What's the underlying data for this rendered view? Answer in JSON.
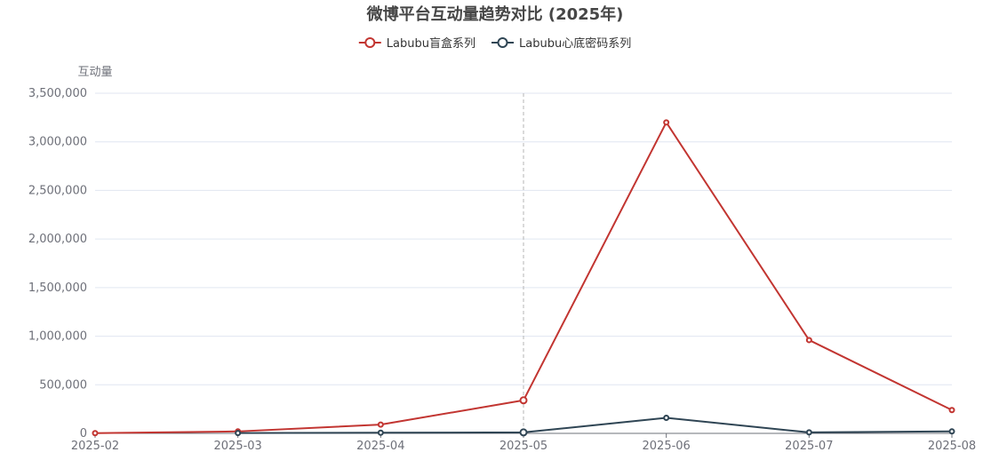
{
  "chart_data": {
    "type": "line",
    "title": "微博平台互动量趋势对比 (2025年)",
    "ylabel": "互动量",
    "xlabel": "",
    "categories": [
      "2025-02",
      "2025-03",
      "2025-04",
      "2025-05",
      "2025-06",
      "2025-07",
      "2025-08"
    ],
    "ylim": [
      0,
      3500000
    ],
    "yticks": [
      "0",
      "500,000",
      "1,000,000",
      "1,500,000",
      "2,000,000",
      "2,500,000",
      "3,000,000",
      "3,500,000"
    ],
    "grid": true,
    "legend_position": "top-center",
    "highlighted_category": "2025-05",
    "series": [
      {
        "name": "Labubu盲盒系列",
        "color": "#c23531",
        "values": [
          2000,
          20000,
          90000,
          340000,
          3200000,
          960000,
          240000
        ]
      },
      {
        "name": "Labubu心底密码系列",
        "color": "#2f4554",
        "values": [
          null,
          3000,
          7000,
          10000,
          160000,
          10000,
          20000
        ]
      }
    ]
  }
}
